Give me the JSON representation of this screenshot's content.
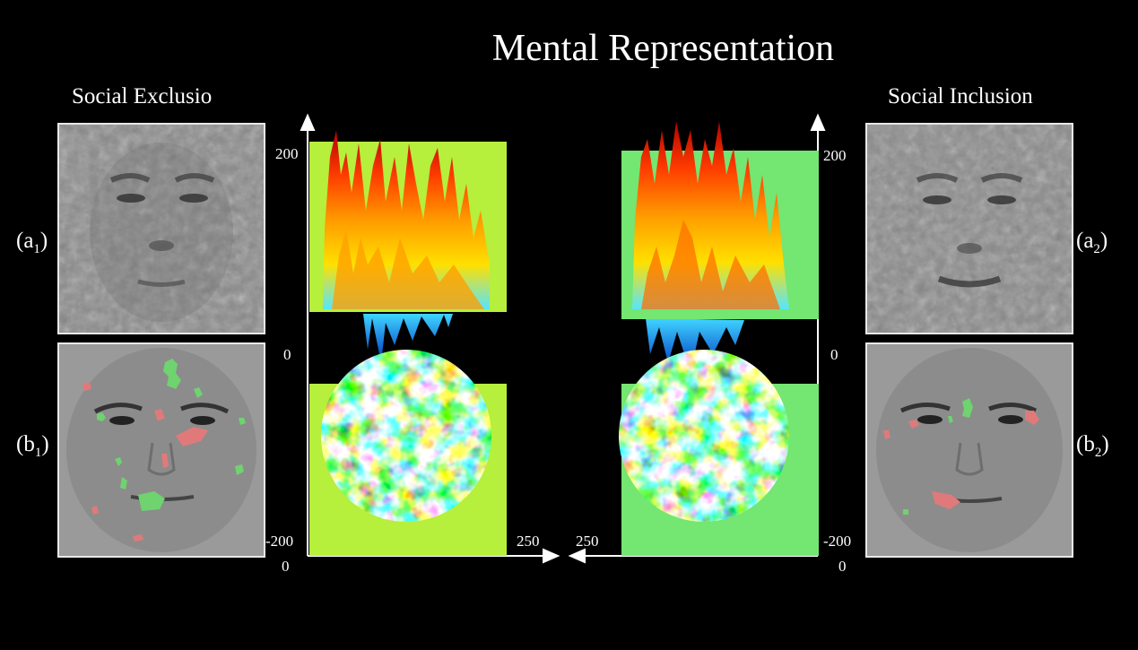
{
  "title": "Mental Representation",
  "left": {
    "heading": "Social Exclusio",
    "top_label": "(a",
    "top_sub": "1",
    "bottom_label": "(b",
    "bottom_sub": "1",
    "close": ")"
  },
  "right": {
    "heading": "Social Inclusion",
    "top_label": "(a",
    "top_sub": "2",
    "bottom_label": "(b",
    "bottom_sub": "2",
    "close": ")"
  },
  "axis": {
    "y_top": "200",
    "y_mid": "0",
    "y_bottom": "-200",
    "x_origin": "0",
    "x_end": "250"
  }
}
